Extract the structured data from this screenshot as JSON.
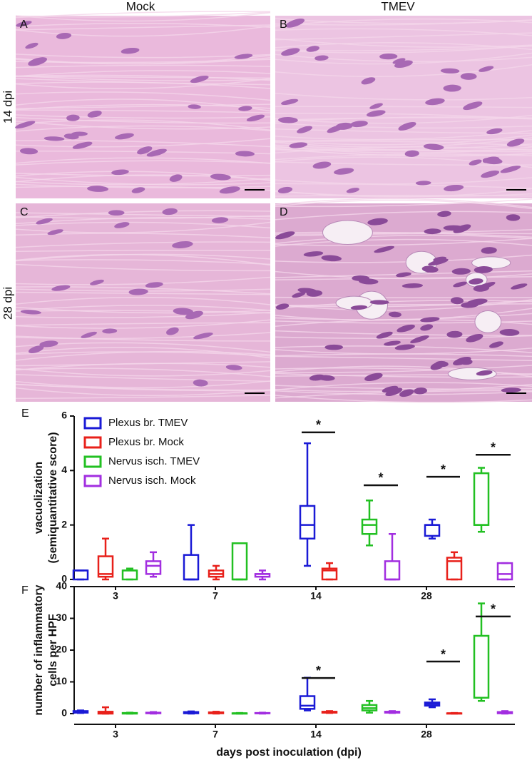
{
  "figure": {
    "column_labels": [
      "Mock",
      "TMEV"
    ],
    "row_labels": [
      "14 dpi",
      "28 dpi"
    ],
    "panels": [
      "A",
      "B",
      "C",
      "D"
    ]
  },
  "chart_data": [
    {
      "type": "box",
      "panel": "E",
      "ylabel": [
        "vacuolization",
        "(semiquantitative score)"
      ],
      "categories": [
        "3",
        "7",
        "14",
        "28"
      ],
      "ylim": [
        0,
        6
      ],
      "yticks": [
        0,
        2,
        4,
        6
      ],
      "legend": "upper-left",
      "series": [
        {
          "name": "Plexus br. TMEV",
          "color": "#1a1ad6",
          "min": [
            0,
            0,
            0.5,
            1.5
          ],
          "q1": [
            0,
            0,
            1.5,
            1.6
          ],
          "median": [
            0.33,
            0,
            2,
            2
          ],
          "q3": [
            0.33,
            0.9,
            2.7,
            2
          ],
          "max": [
            0.33,
            2,
            5,
            2.2
          ]
        },
        {
          "name": "Plexus br. Mock",
          "color": "#e8201a",
          "min": [
            0,
            0,
            0,
            0
          ],
          "q1": [
            0.1,
            0.1,
            0,
            0
          ],
          "median": [
            0.2,
            0.2,
            0.33,
            0.67
          ],
          "q3": [
            0.85,
            0.33,
            0.4,
            0.8
          ],
          "max": [
            1.5,
            0.5,
            0.6,
            1
          ]
        },
        {
          "name": "Nervus isch. TMEV",
          "color": "#22c022",
          "min": [
            0,
            0,
            1.25,
            1.75
          ],
          "q1": [
            0,
            0,
            1.67,
            2
          ],
          "median": [
            0.33,
            0,
            2,
            2
          ],
          "q3": [
            0.33,
            1.33,
            2.2,
            3.9
          ],
          "max": [
            0.4,
            1.33,
            2.9,
            4.1
          ]
        },
        {
          "name": "Nervus isch. Mock",
          "color": "#a22ee0",
          "min": [
            0.1,
            0,
            0,
            0
          ],
          "q1": [
            0.2,
            0.1,
            0,
            0
          ],
          "median": [
            0.5,
            0.2,
            0,
            0.2
          ],
          "q3": [
            0.67,
            0.2,
            0.67,
            0.6
          ],
          "max": [
            1,
            0.33,
            1.67,
            0.6
          ]
        }
      ],
      "annotations": [
        "*",
        "*",
        "*",
        "*"
      ]
    },
    {
      "type": "box",
      "panel": "F",
      "ylabel": [
        "number of inflammatory",
        "cells per HPF"
      ],
      "xlabel": "days post inoculation (dpi)",
      "categories": [
        "3",
        "7",
        "14",
        "28"
      ],
      "ylim": [
        0,
        40
      ],
      "yticks": [
        0,
        10,
        20,
        30,
        40
      ],
      "series": [
        {
          "name": "Plexus br. TMEV",
          "color": "#1a1ad6",
          "min": [
            0.2,
            0,
            1,
            2
          ],
          "q1": [
            0.3,
            0.1,
            1.5,
            2.5
          ],
          "median": [
            0.6,
            0.3,
            2.5,
            3
          ],
          "q3": [
            0.8,
            0.5,
            5.5,
            3.5
          ],
          "max": [
            1,
            0.7,
            11.3,
            4.5
          ]
        },
        {
          "name": "Plexus br. Mock",
          "color": "#e8201a",
          "min": [
            0,
            0,
            0.2,
            0
          ],
          "q1": [
            0,
            0.1,
            0.3,
            0
          ],
          "median": [
            0.3,
            0.2,
            0.4,
            0.1
          ],
          "q3": [
            0.6,
            0.4,
            0.6,
            0.1
          ],
          "max": [
            2,
            0.6,
            0.8,
            0.2
          ]
        },
        {
          "name": "Nervus isch. TMEV",
          "color": "#22c022",
          "min": [
            0,
            0,
            0.3,
            4
          ],
          "q1": [
            0,
            0,
            1,
            5
          ],
          "median": [
            0.1,
            0.1,
            1.7,
            5
          ],
          "q3": [
            0.2,
            0.1,
            2.7,
            24.5
          ],
          "max": [
            0.3,
            0.2,
            4,
            34.7
          ]
        },
        {
          "name": "Nervus isch. Mock",
          "color": "#a22ee0",
          "min": [
            0,
            0,
            0.2,
            0
          ],
          "q1": [
            0.1,
            0.1,
            0.3,
            0.1
          ],
          "median": [
            0.2,
            0.1,
            0.5,
            0.3
          ],
          "q3": [
            0.3,
            0.2,
            0.6,
            0.5
          ],
          "max": [
            0.5,
            0.3,
            0.8,
            0.8
          ]
        }
      ],
      "annotations": [
        "*",
        "*",
        "*"
      ]
    }
  ]
}
